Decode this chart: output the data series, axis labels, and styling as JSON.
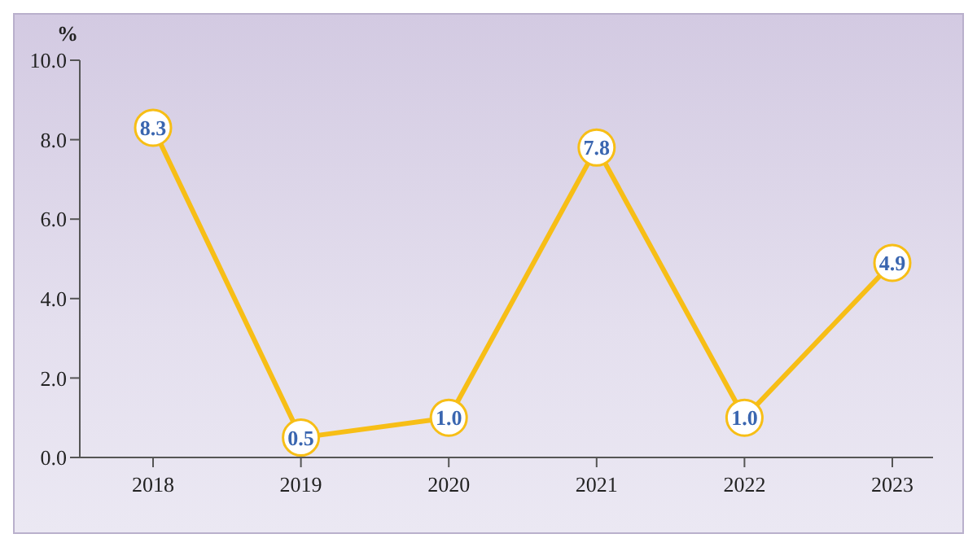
{
  "chart_data": {
    "type": "line",
    "ylabel": "%",
    "categories": [
      "2018",
      "2019",
      "2020",
      "2021",
      "2022",
      "2023"
    ],
    "series": [
      {
        "color": "#f7be16",
        "values": [
          8.3,
          0.5,
          1.0,
          7.8,
          1.0,
          4.9
        ],
        "value_labels": [
          "8.3",
          "0.5",
          "1.0",
          "7.8",
          "1.0",
          "4.9"
        ]
      }
    ],
    "ylim": [
      0,
      10
    ],
    "yticks": [
      {
        "value": 0,
        "label": "0.0"
      },
      {
        "value": 2,
        "label": "2.0"
      },
      {
        "value": 4,
        "label": "4.0"
      },
      {
        "value": 6,
        "label": "6.0"
      },
      {
        "value": 8,
        "label": "8.0"
      },
      {
        "value": 10,
        "label": "10.0"
      }
    ],
    "grid": false,
    "legend": false,
    "marker": "circle",
    "line_style": "solid"
  }
}
